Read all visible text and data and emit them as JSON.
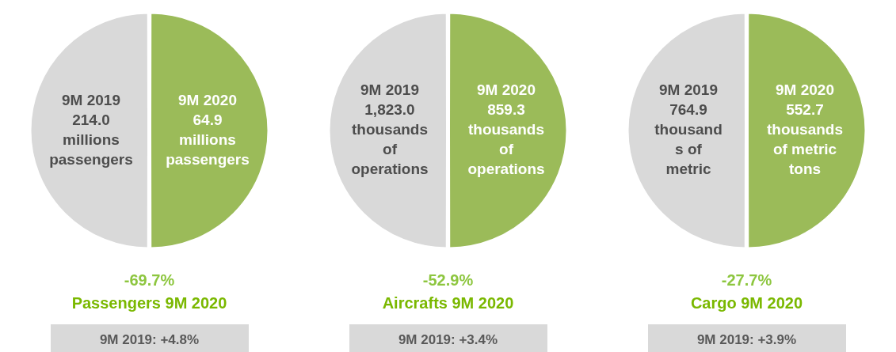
{
  "chart_data": [
    {
      "type": "pie",
      "title": "Passengers 9M 2020",
      "subtitle": "-69.7%",
      "categories": [
        "9M 2019\n214.0\nmillions\npassengers",
        "9M 2020\n64.9\nmillions\npassengers"
      ],
      "values": [
        50,
        50
      ],
      "colors": [
        "#d9d9d9",
        "#9bbb59"
      ],
      "annotations": [
        "9M 2019: +4.8%"
      ]
    },
    {
      "type": "pie",
      "title": "Aircrafts 9M 2020",
      "subtitle": "-52.9%",
      "categories": [
        "9M 2019\n1,823.0\nthousands\nof\noperations",
        "9M 2020\n859.3\nthousands\nof\noperations"
      ],
      "values": [
        50,
        50
      ],
      "colors": [
        "#d9d9d9",
        "#9bbb59"
      ],
      "annotations": [
        "9M 2019: +3.4%"
      ]
    },
    {
      "type": "pie",
      "title": "Cargo 9M 2020",
      "subtitle": "-27.7%",
      "categories": [
        "9M 2019\n764.9\nthousand\ns of\nmetric",
        "9M 2020\n552.7\nthousands\nof metric\ntons"
      ],
      "values": [
        50,
        50
      ],
      "colors": [
        "#d9d9d9",
        "#9bbb59"
      ],
      "annotations": [
        "9M 2019: +3.9%"
      ]
    }
  ]
}
